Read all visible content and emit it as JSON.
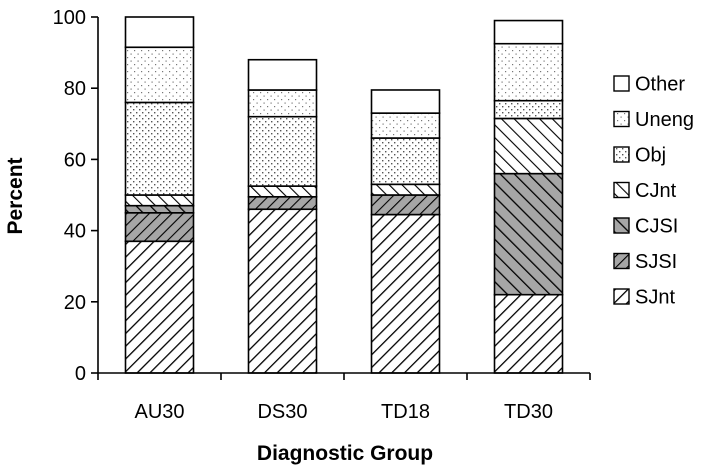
{
  "chart_data": {
    "type": "bar",
    "stacked": true,
    "title": "",
    "xlabel": "Diagnostic Group",
    "ylabel": "Percent",
    "ylim": [
      0,
      100
    ],
    "yticks": [
      0,
      20,
      40,
      60,
      80,
      100
    ],
    "grid": false,
    "legend_position": "right",
    "categories": [
      "AU30",
      "DS30",
      "TD18",
      "TD30"
    ],
    "series": [
      {
        "name": "SJnt",
        "pattern": "wide-diagonal-hatch",
        "values": [
          37,
          46,
          44.5,
          22
        ]
      },
      {
        "name": "SJSI",
        "pattern": "gray-diagonal-hatch",
        "values": [
          8,
          3.5,
          5.5,
          0
        ]
      },
      {
        "name": "CJSI",
        "pattern": "gray-dense-hatch",
        "values": [
          2,
          0,
          0,
          34
        ]
      },
      {
        "name": "CJnt",
        "pattern": "back-diagonal-hatch",
        "values": [
          3,
          3,
          3,
          15.5
        ]
      },
      {
        "name": "Obj",
        "pattern": "dots",
        "values": [
          26,
          19.5,
          13,
          5
        ]
      },
      {
        "name": "Uneng",
        "pattern": "light-dots",
        "values": [
          15.5,
          7.5,
          7,
          16
        ]
      },
      {
        "name": "Other",
        "pattern": "white",
        "values": [
          8.5,
          8.5,
          6.5,
          6.5
        ]
      }
    ],
    "legend_order": [
      "Other",
      "Uneng",
      "Obj",
      "CJnt",
      "CJSI",
      "SJSI",
      "SJnt"
    ]
  }
}
